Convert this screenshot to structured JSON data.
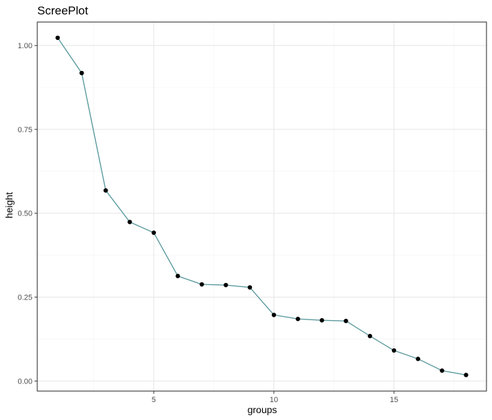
{
  "chart_data": {
    "type": "line",
    "title": "ScreePlot",
    "xlabel": "groups",
    "ylabel": "height",
    "xlim": [
      0.15,
      18.85
    ],
    "ylim": [
      -0.03,
      1.07
    ],
    "x_ticks": [
      5,
      10,
      15
    ],
    "x_minor_ticks": [
      2.5,
      7.5,
      12.5,
      17.5
    ],
    "y_ticks": [
      0.0,
      0.25,
      0.5,
      0.75,
      1.0
    ],
    "y_tick_labels": [
      "0.00",
      "0.25",
      "0.50",
      "0.75",
      "1.00"
    ],
    "y_minor_ticks": [
      0.125,
      0.375,
      0.625,
      0.875
    ],
    "grid": true,
    "line_color": "#5b9a9e",
    "point_color": "#000000",
    "series": [
      {
        "x": [
          1,
          2,
          3,
          4,
          5,
          6,
          7,
          8,
          9,
          10,
          11,
          12,
          13,
          14,
          15,
          16,
          17,
          18
        ],
        "values": [
          1.023,
          0.918,
          0.568,
          0.474,
          0.442,
          0.313,
          0.288,
          0.286,
          0.279,
          0.197,
          0.185,
          0.181,
          0.179,
          0.134,
          0.091,
          0.066,
          0.031,
          0.018
        ]
      }
    ]
  }
}
